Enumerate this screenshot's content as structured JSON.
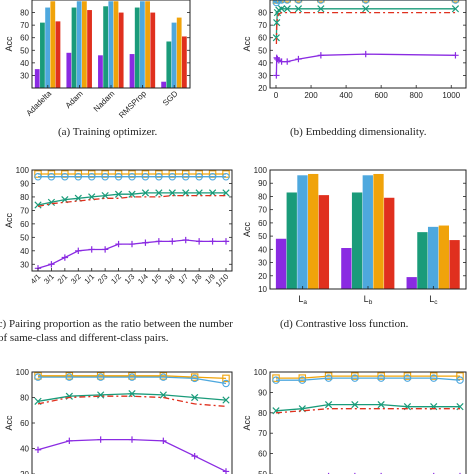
{
  "colors": {
    "purple": "#8a2be2",
    "teal": "#1a9b7a",
    "blue": "#4ea8de",
    "orange": "#f0a30a",
    "red": "#e0301e",
    "axis": "#222222"
  },
  "captions": {
    "a": "(a) Training optimizer.",
    "b": "(b) Embedding dimensionality.",
    "c1": "(c) Pairing proportion as the ratio between the number",
    "c2": "of same-class and different-class pairs.",
    "d": "(d) Contrastive loss function."
  },
  "chart_data": [
    {
      "id": "a",
      "type": "bar",
      "ylabel": "Acc",
      "ylim": [
        20,
        90
      ],
      "yticks": [
        30,
        40,
        50,
        60,
        70,
        80
      ],
      "categories": [
        "Adadelta",
        "Adam",
        "Nadam",
        "RMSProp",
        "SGD"
      ],
      "series": [
        {
          "color": "purple",
          "values": [
            35,
            48,
            46,
            47,
            25
          ]
        },
        {
          "color": "teal",
          "values": [
            72,
            84,
            85,
            84,
            57
          ]
        },
        {
          "color": "blue",
          "values": [
            84,
            89,
            89,
            89,
            72
          ]
        },
        {
          "color": "orange",
          "values": [
            89,
            89,
            89,
            89,
            76
          ]
        },
        {
          "color": "red",
          "values": [
            73,
            82,
            80,
            80,
            61
          ]
        }
      ]
    },
    {
      "id": "b",
      "type": "line",
      "ylabel": "Acc",
      "xlim": [
        0,
        1050
      ],
      "ylim": [
        20,
        90
      ],
      "xticks": [
        0,
        200,
        400,
        600,
        800,
        1000
      ],
      "yticks": [
        20,
        30,
        40,
        50,
        60,
        70,
        80
      ],
      "series": [
        {
          "color": "orange",
          "marker": "square",
          "dash": "",
          "x": [
            2,
            4,
            8,
            16,
            32,
            64,
            128,
            256,
            512,
            1024
          ],
          "y": [
            90,
            91,
            91,
            91,
            91,
            91,
            91,
            91,
            91,
            91
          ]
        },
        {
          "color": "blue",
          "marker": "circle",
          "dash": "",
          "x": [
            2,
            4,
            8,
            16,
            32,
            64,
            128,
            256,
            512,
            1024
          ],
          "y": [
            88,
            90,
            90,
            90,
            90,
            90,
            90,
            90,
            90,
            90
          ]
        },
        {
          "color": "teal",
          "marker": "x",
          "dash": "",
          "x": [
            2,
            4,
            8,
            16,
            32,
            64,
            128,
            256,
            512,
            1024
          ],
          "y": [
            60,
            72,
            80,
            82,
            83,
            83,
            83,
            83,
            83,
            83
          ]
        },
        {
          "color": "red",
          "marker": "none",
          "dash": "6,3,2,3",
          "x": [
            2,
            4,
            8,
            16,
            32,
            64,
            128,
            256,
            512,
            1024
          ],
          "y": [
            55,
            68,
            76,
            79,
            80,
            80,
            80,
            80,
            80,
            80
          ]
        },
        {
          "color": "purple",
          "marker": "plus",
          "dash": "",
          "x": [
            2,
            4,
            8,
            16,
            32,
            64,
            128,
            256,
            512,
            1024
          ],
          "y": [
            30,
            44,
            43,
            42,
            41,
            41,
            43,
            46,
            47,
            46
          ]
        }
      ]
    },
    {
      "id": "c",
      "type": "line",
      "ylabel": "Acc",
      "ylim": [
        25,
        100
      ],
      "yticks": [
        30,
        40,
        50,
        60,
        70,
        80,
        90,
        100
      ],
      "categories": [
        "4/1",
        "3/1",
        "2/1",
        "3/2",
        "1/1",
        "2/3",
        "1/2",
        "1/3",
        "1/4",
        "1/5",
        "1/6",
        "1/7",
        "1/8",
        "1/9",
        "1/10"
      ],
      "series": [
        {
          "color": "orange",
          "marker": "square",
          "dash": "",
          "y": [
            97,
            97,
            97,
            97,
            97,
            97,
            97,
            97,
            97,
            97,
            97,
            97,
            97,
            97,
            97
          ]
        },
        {
          "color": "blue",
          "marker": "circle",
          "dash": "",
          "y": [
            95,
            95,
            95,
            95,
            95,
            95,
            95,
            95,
            95,
            95,
            95,
            95,
            95,
            95,
            95
          ]
        },
        {
          "color": "teal",
          "marker": "x",
          "dash": "",
          "y": [
            74,
            76,
            78,
            79,
            80,
            81,
            82,
            82,
            83,
            83,
            83,
            83,
            83,
            83,
            83
          ]
        },
        {
          "color": "red",
          "marker": "none",
          "dash": "6,3,2,3",
          "y": [
            73,
            75,
            76,
            77,
            78,
            79,
            79,
            80,
            80,
            80,
            81,
            81,
            81,
            81,
            81
          ]
        },
        {
          "color": "purple",
          "marker": "plus",
          "dash": "",
          "y": [
            27,
            30,
            35,
            40,
            41,
            41,
            45,
            45,
            46,
            47,
            47,
            48,
            47,
            47,
            47
          ]
        }
      ]
    },
    {
      "id": "d",
      "type": "bar",
      "ylabel": "Acc",
      "ylim": [
        10,
        100
      ],
      "yticks": [
        10,
        20,
        30,
        40,
        50,
        60,
        70,
        80,
        90,
        100
      ],
      "categories": [
        "L_a",
        "L_b",
        "L_c"
      ],
      "series": [
        {
          "color": "purple",
          "values": [
            48,
            41,
            19
          ]
        },
        {
          "color": "teal",
          "values": [
            83,
            83,
            53
          ]
        },
        {
          "color": "blue",
          "values": [
            96,
            96,
            57
          ]
        },
        {
          "color": "orange",
          "values": [
            97,
            97,
            58
          ]
        },
        {
          "color": "red",
          "values": [
            81,
            79,
            47
          ]
        }
      ]
    },
    {
      "id": "e",
      "type": "line",
      "ylabel": "Acc",
      "ylim": [
        20,
        100
      ],
      "yticks": [
        20,
        40,
        60,
        80,
        100
      ],
      "series": [
        {
          "color": "orange",
          "marker": "square",
          "dash": "",
          "y": [
            97,
            97,
            97,
            97,
            97,
            96,
            95
          ]
        },
        {
          "color": "blue",
          "marker": "circle",
          "dash": "",
          "y": [
            96,
            96,
            96,
            96,
            96,
            95,
            91
          ]
        },
        {
          "color": "teal",
          "marker": "x",
          "dash": "",
          "y": [
            77,
            81,
            82,
            83,
            82,
            80,
            78
          ]
        },
        {
          "color": "red",
          "marker": "none",
          "dash": "6,3,2,3",
          "y": [
            75,
            80,
            81,
            81,
            80,
            75,
            73
          ]
        },
        {
          "color": "purple",
          "marker": "plus",
          "dash": "",
          "y": [
            39,
            46,
            47,
            47,
            46,
            34,
            22
          ]
        }
      ]
    },
    {
      "id": "f",
      "type": "line",
      "ylabel": "Acc",
      "ylim": [
        50,
        100
      ],
      "yticks": [
        50,
        60,
        70,
        80,
        90,
        100
      ],
      "series": [
        {
          "color": "orange",
          "marker": "square",
          "dash": "",
          "y": [
            97,
            97,
            98,
            98,
            98,
            98,
            98,
            98
          ]
        },
        {
          "color": "blue",
          "marker": "circle",
          "dash": "",
          "y": [
            96,
            96,
            97,
            97,
            97,
            97,
            97,
            96
          ]
        },
        {
          "color": "teal",
          "marker": "x",
          "dash": "",
          "y": [
            81,
            82,
            84,
            84,
            84,
            83,
            83,
            83
          ]
        },
        {
          "color": "red",
          "marker": "none",
          "dash": "6,3,2,3",
          "y": [
            80,
            81,
            82,
            82,
            82,
            82,
            82,
            82
          ]
        },
        {
          "color": "purple",
          "marker": "plus",
          "dash": "",
          "y": [
            47,
            48,
            49,
            49,
            49,
            48,
            49,
            49
          ]
        }
      ]
    }
  ]
}
